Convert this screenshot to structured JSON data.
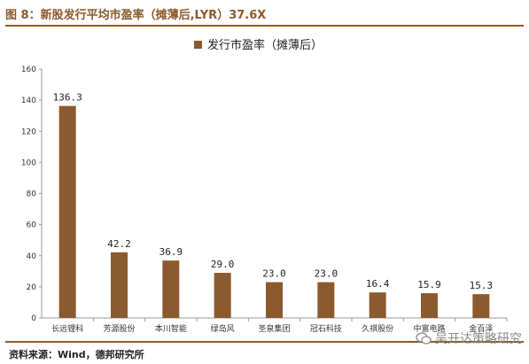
{
  "figure": {
    "title": "图 8：新股发行平均市盈率（摊薄后,LYR）37.6X",
    "source": "资料来源：Wind，德邦研究所",
    "watermark": "吴开达策略研究"
  },
  "colors": {
    "accent": "#8c5a2b",
    "bar": "#8b5a2e",
    "axis": "#999999"
  },
  "chart_data": {
    "type": "bar",
    "categories": [
      "长远锂科",
      "芳源股份",
      "本川智能",
      "绿岛风",
      "圣泉集团",
      "冠石科技",
      "久祺股份",
      "中富电路",
      "金百泽"
    ],
    "series": [
      {
        "name": "发行市盈率（摊薄后）",
        "values": [
          136.3,
          42.2,
          36.9,
          29.0,
          23.0,
          23.0,
          16.4,
          15.9,
          15.3
        ]
      }
    ],
    "value_labels": [
      "136.3",
      "42.2",
      "36.9",
      "29.0",
      "23.0",
      "23.0",
      "16.4",
      "15.9",
      "15.3"
    ],
    "yticks": [
      "0",
      "20",
      "40",
      "60",
      "80",
      "100",
      "120",
      "140",
      "160"
    ],
    "ylim": [
      0,
      160
    ],
    "legend_position": "top-center",
    "grid": false
  }
}
